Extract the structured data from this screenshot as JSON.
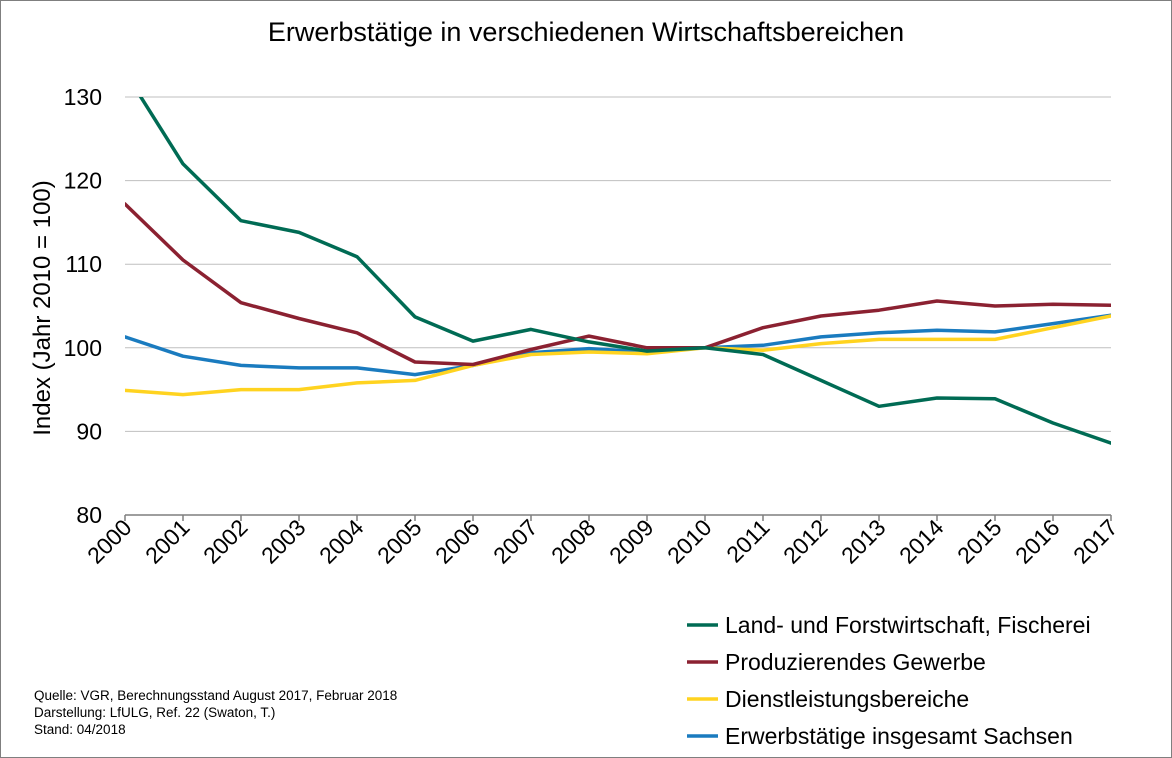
{
  "chart_data": {
    "type": "line",
    "title": "Erwerbstätige in verschiedenen  Wirtschaftsbereichen",
    "xlabel": "",
    "ylabel": "Index (Jahr 2010 = 100)",
    "ylim": [
      80,
      130
    ],
    "yticks": [
      "80",
      "90",
      "100",
      "110",
      "120",
      "130"
    ],
    "categories": [
      "2000",
      "2001",
      "2002",
      "2003",
      "2004",
      "2005",
      "2006",
      "2007",
      "2008",
      "2009",
      "2010",
      "2011",
      "2012",
      "2013",
      "2014",
      "2015",
      "2016",
      "2017"
    ],
    "grid": "horizontal",
    "legend_position": "bottom-right",
    "series": [
      {
        "name": "Land- und Forstwirtschaft, Fischerei",
        "color": "#006B54",
        "values": [
          133.0,
          122.0,
          115.2,
          113.8,
          110.9,
          103.7,
          100.8,
          102.2,
          100.7,
          99.6,
          100.0,
          99.2,
          96.1,
          93.0,
          94.0,
          93.9,
          91.0,
          88.6
        ]
      },
      {
        "name": "Produzierendes Gewerbe",
        "color": "#8B2131",
        "values": [
          117.2,
          110.5,
          105.4,
          103.5,
          101.8,
          98.3,
          98.0,
          99.8,
          101.4,
          100.0,
          100.0,
          102.4,
          103.8,
          104.5,
          105.6,
          105.0,
          105.2,
          105.1
        ]
      },
      {
        "name": "Dienstleistungsbereiche",
        "color": "#FFD320",
        "values": [
          94.9,
          94.4,
          95.0,
          95.0,
          95.8,
          96.1,
          97.9,
          99.2,
          99.5,
          99.3,
          100.0,
          99.7,
          100.5,
          101.0,
          101.0,
          101.0,
          102.4,
          103.8
        ]
      },
      {
        "name": "Erwerbstätige insgesamt Sachsen",
        "color": "#1A7BBF",
        "values": [
          101.3,
          99.0,
          97.9,
          97.6,
          97.6,
          96.8,
          97.9,
          99.4,
          99.9,
          99.5,
          100.0,
          100.3,
          101.3,
          101.8,
          102.1,
          101.9,
          102.9,
          103.9
        ]
      }
    ]
  },
  "source_note": [
    "Quelle: VGR, Berechnungsstand August 2017, Februar 2018",
    "Darstellung: LfULG, Ref. 22 (Swaton, T.)",
    "Stand: 04/2018"
  ]
}
